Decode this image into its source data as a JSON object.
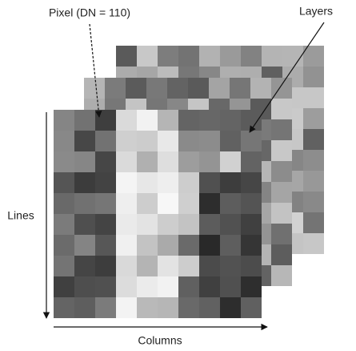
{
  "labels": {
    "pixel": "Pixel (DN = 110)",
    "layers": "Layers",
    "lines": "Lines",
    "columns": "Columns"
  }
}
